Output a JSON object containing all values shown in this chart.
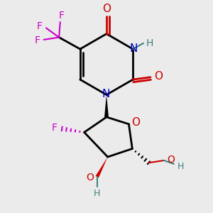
{
  "bg_color": "#ebebeb",
  "bond_color": "#000000",
  "N_color": "#0000cc",
  "O_color": "#cc0000",
  "F_color": "#cc00cc",
  "H_color": "#408080",
  "figsize": [
    3.0,
    3.0
  ],
  "dpi": 100,
  "xlim": [
    0.5,
    8.5
  ],
  "ylim": [
    0.5,
    9.5
  ]
}
